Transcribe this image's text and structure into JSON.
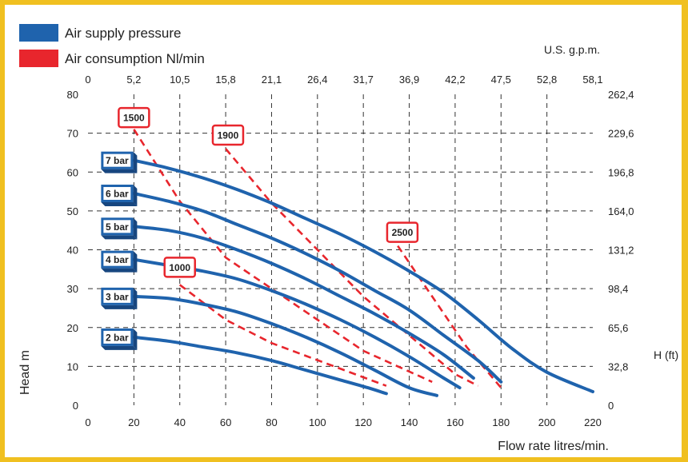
{
  "chart_data": {
    "type": "line",
    "legend": [
      {
        "label": "Air supply pressure",
        "color": "#1f63ad"
      },
      {
        "label": "Air consumption Nl/min",
        "color": "#e8262d"
      }
    ],
    "x": {
      "label": "Flow rate litres/min.",
      "min": 0,
      "max": 220,
      "ticks": [
        "0",
        "20",
        "40",
        "60",
        "80",
        "100",
        "120",
        "140",
        "160",
        "180",
        "200",
        "220"
      ]
    },
    "x_top": {
      "label": "U.S. g.p.m.",
      "ticks": [
        "0",
        "5,2",
        "10,5",
        "15,8",
        "21,1",
        "26,4",
        "31,7",
        "36,9",
        "42,2",
        "47,5",
        "52,8",
        "58,1"
      ]
    },
    "y": {
      "label": "Head m",
      "min": 0,
      "max": 80,
      "ticks": [
        "0",
        "10",
        "20",
        "30",
        "40",
        "50",
        "60",
        "70",
        "80"
      ]
    },
    "y_right": {
      "label": "H (ft)",
      "ticks": [
        "0",
        "32,8",
        "65,6",
        "98,4",
        "131,2",
        "164,0",
        "196,8",
        "229,6",
        "262,4"
      ]
    },
    "grid": true,
    "series": [
      {
        "name": "7 bar",
        "points": [
          [
            20,
            63
          ],
          [
            35,
            61
          ],
          [
            50,
            58.5
          ],
          [
            65,
            55.5
          ],
          [
            80,
            52
          ],
          [
            95,
            48
          ],
          [
            110,
            44
          ],
          [
            125,
            39.5
          ],
          [
            140,
            34.5
          ],
          [
            155,
            29
          ],
          [
            170,
            22
          ],
          [
            185,
            14.5
          ],
          [
            200,
            8.5
          ],
          [
            220,
            3.5
          ]
        ]
      },
      {
        "name": "6 bar",
        "points": [
          [
            20,
            54.5
          ],
          [
            35,
            52.5
          ],
          [
            50,
            50
          ],
          [
            65,
            46.5
          ],
          [
            80,
            43
          ],
          [
            95,
            39
          ],
          [
            110,
            34.5
          ],
          [
            125,
            29.5
          ],
          [
            140,
            24.5
          ],
          [
            155,
            18
          ],
          [
            170,
            11.5
          ],
          [
            180,
            6
          ]
        ]
      },
      {
        "name": "5 bar",
        "points": [
          [
            20,
            46
          ],
          [
            35,
            45
          ],
          [
            50,
            43
          ],
          [
            65,
            40
          ],
          [
            80,
            36.5
          ],
          [
            95,
            32.5
          ],
          [
            110,
            28
          ],
          [
            125,
            23.5
          ],
          [
            140,
            18.5
          ],
          [
            155,
            13
          ],
          [
            168,
            7
          ]
        ]
      },
      {
        "name": "4 bar",
        "points": [
          [
            20,
            37.5
          ],
          [
            35,
            36
          ],
          [
            50,
            34.5
          ],
          [
            65,
            32.5
          ],
          [
            80,
            29.5
          ],
          [
            95,
            26
          ],
          [
            110,
            22
          ],
          [
            125,
            17.5
          ],
          [
            140,
            12.5
          ],
          [
            155,
            7
          ],
          [
            162,
            4.5
          ]
        ]
      },
      {
        "name": "3 bar",
        "points": [
          [
            20,
            28
          ],
          [
            35,
            27.5
          ],
          [
            50,
            26
          ],
          [
            65,
            24
          ],
          [
            80,
            21
          ],
          [
            95,
            17.5
          ],
          [
            110,
            13.5
          ],
          [
            125,
            9
          ],
          [
            140,
            4.5
          ],
          [
            152,
            2.5
          ]
        ]
      },
      {
        "name": "2 bar",
        "points": [
          [
            20,
            17.5
          ],
          [
            35,
            16.5
          ],
          [
            50,
            15
          ],
          [
            65,
            13.5
          ],
          [
            80,
            11.5
          ],
          [
            95,
            9
          ],
          [
            110,
            6.5
          ],
          [
            122,
            4.5
          ],
          [
            130,
            3
          ]
        ]
      }
    ],
    "consumption": [
      {
        "name": "1000",
        "points": [
          [
            40,
            31
          ],
          [
            60,
            22
          ],
          [
            80,
            16
          ],
          [
            130,
            5
          ]
        ],
        "label_at": [
          40,
          35.5
        ]
      },
      {
        "name": "1500",
        "points": [
          [
            20,
            71
          ],
          [
            40,
            52.5
          ],
          [
            60,
            38
          ],
          [
            80,
            30
          ],
          [
            100,
            22
          ],
          [
            120,
            14
          ],
          [
            150,
            6
          ]
        ],
        "label_at": [
          20,
          74
        ]
      },
      {
        "name": "1900",
        "points": [
          [
            60,
            66
          ],
          [
            80,
            52
          ],
          [
            100,
            40
          ],
          [
            120,
            28
          ],
          [
            140,
            18
          ],
          [
            160,
            8
          ],
          [
            170,
            5
          ]
        ],
        "label_at": [
          61,
          69.5
        ]
      },
      {
        "name": "2500",
        "points": [
          [
            135,
            41
          ],
          [
            150,
            28
          ],
          [
            165,
            15
          ],
          [
            180,
            4.5
          ]
        ],
        "label_at": [
          137,
          44.5
        ]
      }
    ]
  }
}
